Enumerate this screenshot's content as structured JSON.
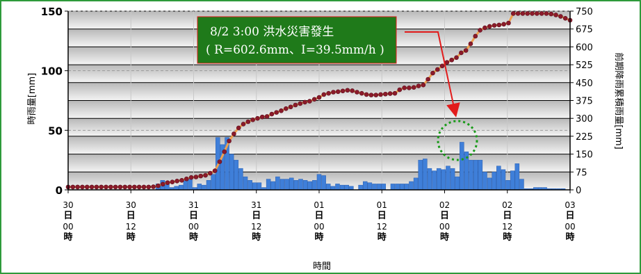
{
  "chart_data": {
    "type": "bar+line",
    "title": "",
    "ylabel_left": "時雨量[mm]",
    "ylabel_right": "前期降雨累積雨量[mm]",
    "xlabel": "時間",
    "ylim_left": [
      0,
      150
    ],
    "ylim_right": [
      0,
      750
    ],
    "y_ticks_left": [
      "0",
      "50",
      "100",
      "150"
    ],
    "y_ticks_right": [
      "0",
      "75",
      "150",
      "225",
      "300",
      "375",
      "450",
      "525",
      "600",
      "675",
      "750"
    ],
    "x_ticks": [
      {
        "day": "30",
        "ri": "日",
        "hh": "00",
        "shi": "時"
      },
      {
        "day": "30",
        "ri": "日",
        "hh": "12",
        "shi": "時"
      },
      {
        "day": "31",
        "ri": "日",
        "hh": "00",
        "shi": "時"
      },
      {
        "day": "31",
        "ri": "日",
        "hh": "12",
        "shi": "時"
      },
      {
        "day": "01",
        "ri": "日",
        "hh": "00",
        "shi": "時"
      },
      {
        "day": "01",
        "ri": "日",
        "hh": "12",
        "shi": "時"
      },
      {
        "day": "02",
        "ri": "日",
        "hh": "00",
        "shi": "時"
      },
      {
        "day": "02",
        "ri": "日",
        "hh": "12",
        "shi": "時"
      },
      {
        "day": "03",
        "ri": "日",
        "hh": "00",
        "shi": "時"
      }
    ],
    "grid": true,
    "series": [
      {
        "type": "bar",
        "axis": "left",
        "color": "#3f7fd9",
        "values": [
          0,
          0,
          0,
          0,
          0,
          0,
          0,
          0,
          0,
          0,
          0,
          0,
          0,
          0,
          0,
          0,
          0,
          0,
          0,
          5,
          8,
          7,
          2,
          3,
          4,
          9,
          10,
          2,
          5,
          4,
          8,
          13,
          44,
          38,
          44,
          30,
          25,
          18,
          11,
          8,
          6,
          6,
          2,
          9,
          7,
          11,
          9,
          9,
          10,
          8,
          9,
          8,
          7,
          8,
          13,
          12,
          5,
          3,
          5,
          4,
          4,
          3,
          0,
          4,
          7,
          6,
          5,
          5,
          5,
          0,
          5,
          5,
          5,
          5,
          7,
          10,
          25,
          26,
          18,
          16,
          18,
          17,
          20,
          18,
          11,
          40,
          32,
          25,
          25,
          25,
          15,
          10,
          15,
          20,
          17,
          8,
          16,
          22,
          9,
          1,
          1,
          2,
          2,
          2,
          1,
          1,
          1,
          1,
          0
        ]
      },
      {
        "type": "line",
        "axis": "right",
        "color": "#8b1a2b",
        "values": [
          12,
          12,
          12,
          12,
          12,
          12,
          12,
          12,
          12,
          12,
          12,
          12,
          12,
          12,
          12,
          12,
          12,
          12,
          13,
          17,
          24,
          30,
          33,
          37,
          40,
          46,
          52,
          54,
          58,
          61,
          70,
          80,
          118,
          160,
          205,
          235,
          260,
          276,
          286,
          294,
          300,
          306,
          308,
          318,
          325,
          332,
          341,
          348,
          356,
          362,
          368,
          372,
          380,
          388,
          400,
          405,
          410,
          412,
          415,
          418,
          416,
          410,
          405,
          400,
          398,
          398,
          400,
          402,
          404,
          405,
          420,
          428,
          428,
          430,
          436,
          440,
          464,
          490,
          505,
          520,
          535,
          545,
          555,
          575,
          585,
          613,
          645,
          670,
          680,
          686,
          690,
          692,
          695,
          700,
          740,
          740,
          740,
          740,
          740,
          740,
          740,
          740,
          738,
          734,
          728,
          720,
          712
        ]
      }
    ],
    "annotation": {
      "line1": "8/2 3:00  洪水災害發生",
      "line2": "( R=602.6mm、I=39.5mm/h )"
    }
  }
}
